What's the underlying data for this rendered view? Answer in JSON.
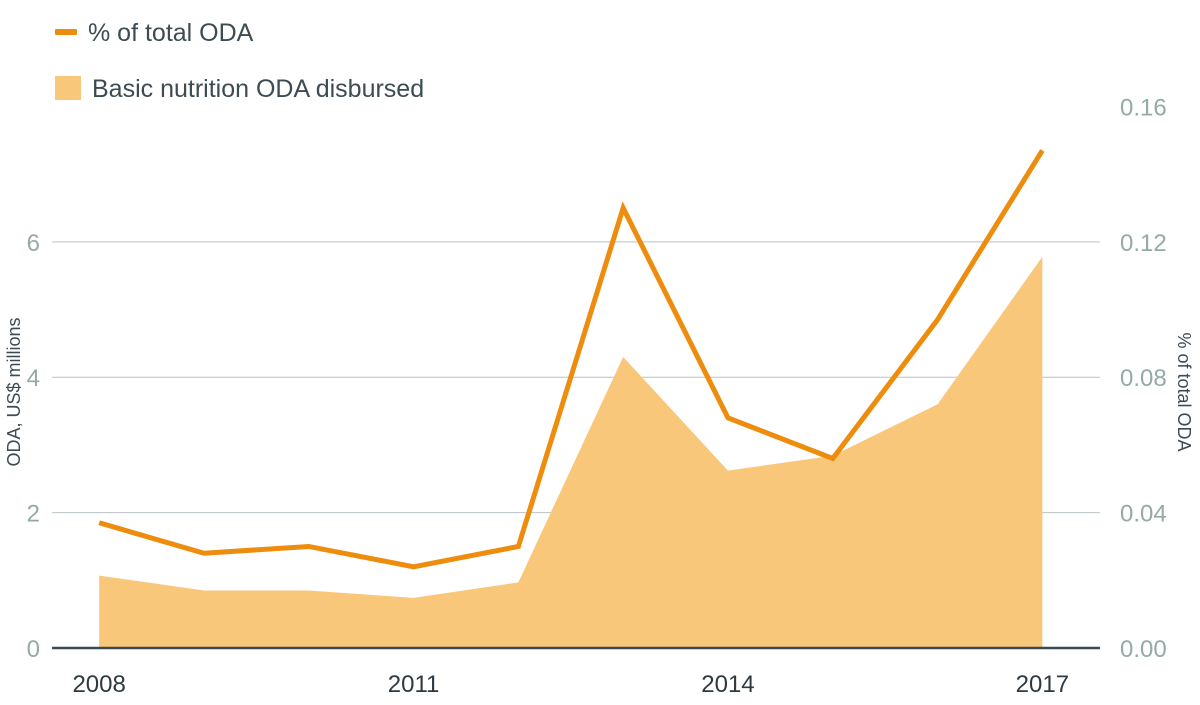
{
  "chart_data": {
    "type": "line+area",
    "x": [
      2008,
      2009,
      2010,
      2011,
      2012,
      2013,
      2014,
      2015,
      2016,
      2017
    ],
    "x_tick_labels": [
      "2008",
      "2011",
      "2014",
      "2017"
    ],
    "x_tick_values": [
      2008,
      2011,
      2014,
      2017
    ],
    "series": [
      {
        "name": "Basic nutrition ODA disbursed",
        "type": "area",
        "axis": "left",
        "color": "#f9c77a",
        "values": [
          1.07,
          0.85,
          0.85,
          0.74,
          0.97,
          4.3,
          2.62,
          2.84,
          3.6,
          5.78
        ]
      },
      {
        "name": "% of total ODA",
        "type": "line",
        "axis": "right",
        "color": "#ee8c0e",
        "values": [
          0.037,
          0.028,
          0.03,
          0.024,
          0.03,
          0.13,
          0.068,
          0.056,
          0.097,
          0.147
        ]
      }
    ],
    "y_left": {
      "label": "ODA, US$ millions",
      "ticks": [
        0,
        2,
        4,
        6
      ],
      "tick_labels": [
        "0",
        "2",
        "4",
        "6"
      ],
      "range": [
        0,
        7.8
      ]
    },
    "y_right": {
      "label": "% of total ODA",
      "ticks": [
        0,
        0.04,
        0.08,
        0.12,
        0.16
      ],
      "tick_labels": [
        "0.00",
        "0.04",
        "0.08",
        "0.12",
        "0.16"
      ],
      "range": [
        0,
        0.156
      ]
    },
    "legend": {
      "placement": "top-left",
      "items": [
        {
          "label": "% of total ODA",
          "kind": "line",
          "color": "#ee8c0e"
        },
        {
          "label": "Basic nutrition ODA disbursed",
          "kind": "area",
          "color": "#f9c77a"
        }
      ]
    },
    "grid": true
  }
}
